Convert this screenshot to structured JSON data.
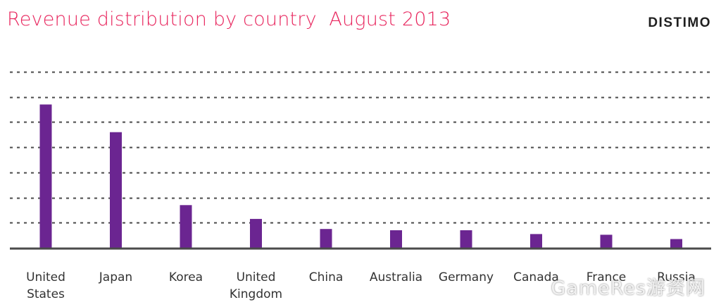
{
  "header": {
    "title": "Revenue distribution by country  August 2013",
    "logo_text": "DISTIMO"
  },
  "watermark": "GameRes游资网",
  "colors": {
    "title": "#e8265e",
    "bar": "#6b2591",
    "gridline": "#4a4a4a",
    "baseline": "#4a4a4a"
  },
  "chart_data": {
    "type": "bar",
    "title": "Revenue distribution by country  August 2013",
    "xlabel": "",
    "ylabel": "",
    "categories": [
      [
        "United",
        "States"
      ],
      [
        "Japan"
      ],
      [
        "Korea"
      ],
      [
        "United",
        "Kingdom"
      ],
      [
        "China"
      ],
      [
        "Australia"
      ],
      [
        "Germany"
      ],
      [
        "Canada"
      ],
      [
        "France"
      ],
      [
        "Russia"
      ]
    ],
    "values": [
      5.7,
      4.6,
      1.7,
      1.15,
      0.75,
      0.7,
      0.7,
      0.55,
      0.52,
      0.35
    ],
    "ylim": [
      0,
      7
    ],
    "gridlines": [
      1,
      2,
      3,
      4,
      5,
      6,
      7
    ],
    "grid": true,
    "grid_style": "dotted",
    "y_tick_labels_visible": false,
    "legend": "none"
  }
}
